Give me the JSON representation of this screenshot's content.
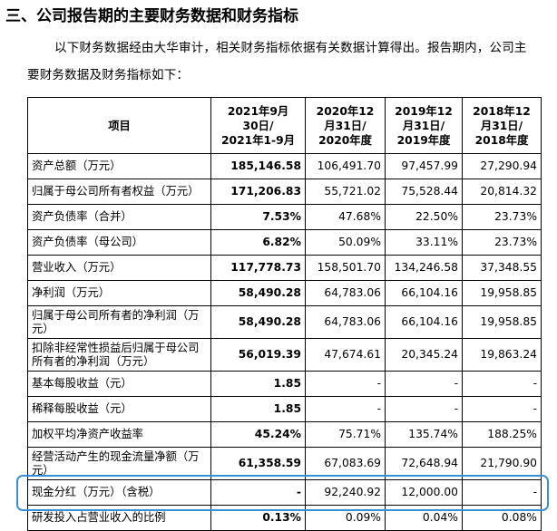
{
  "header": {
    "title": "三、公司报告期的主要财务数据和财务指标"
  },
  "intro": "以下财务数据经由大华审计，相关财务指标依据有关数据计算得出。报告期内，公司主要财务数据及财务指标如下：",
  "table": {
    "header": [
      [
        "项目"
      ],
      [
        "2021年9月",
        "30日/",
        "2021年1-9月"
      ],
      [
        "2020年12",
        "月31日/",
        "2020年度"
      ],
      [
        "2019年12",
        "月31日/",
        "2019年度"
      ],
      [
        "2018年12",
        "月31日/",
        "2018年度"
      ]
    ],
    "rows": [
      [
        "资产总额（万元）",
        "185,146.58",
        "106,491.70",
        "97,457.99",
        "27,290.94"
      ],
      [
        "归属于母公司所有者权益（万元）",
        "171,206.83",
        "55,721.02",
        "75,528.44",
        "20,814.32"
      ],
      [
        "资产负债率（合并）",
        "7.53%",
        "47.68%",
        "22.50%",
        "23.73%"
      ],
      [
        "资产负债率（母公司）",
        "6.82%",
        "50.09%",
        "33.11%",
        "23.73%"
      ],
      [
        "营业收入（万元）",
        "117,778.73",
        "158,501.70",
        "134,246.58",
        "37,348.55"
      ],
      [
        "净利润（万元）",
        "58,490.28",
        "64,783.06",
        "66,104.16",
        "19,958.85"
      ],
      [
        "归属于母公司所有者的净利润（万元）",
        "58,490.28",
        "64,783.06",
        "66,104.16",
        "19,958.85"
      ],
      [
        "扣除非经常性损益后归属于母公司所有者的净利润（万元）",
        "56,019.39",
        "47,674.61",
        "20,345.24",
        "19,863.24"
      ],
      [
        "基本每股收益（元）",
        "1.85",
        "-",
        "-",
        "-"
      ],
      [
        "稀释每股收益（元）",
        "1.85",
        "-",
        "-",
        "-"
      ],
      [
        "加权平均净资产收益率",
        "45.24%",
        "75.71%",
        "135.74%",
        "188.25%"
      ],
      [
        "经营活动产生的现金流量净额（万元）",
        "61,358.59",
        "67,083.69",
        "72,648.94",
        "21,790.90"
      ],
      [
        "现金分红（万元）（含税）",
        "-",
        "92,240.92",
        "12,000.00",
        "-"
      ],
      [
        "研发投入占营业收入的比例",
        "0.13%",
        "0.09%",
        "0.04%",
        "0.08%"
      ]
    ]
  }
}
